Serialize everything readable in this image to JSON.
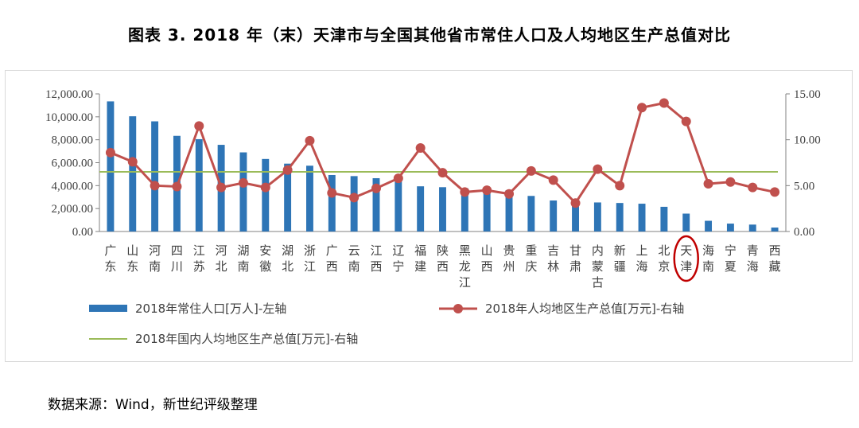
{
  "title": "图表 3. 2018 年（末）天津市与全国其他省市常住人口及人均地区生产总值对比",
  "source": "数据来源：Wind，新世纪评级整理",
  "chart_data": {
    "type": "bar",
    "categories": [
      "广东",
      "山东",
      "河南",
      "四川",
      "江苏",
      "河北",
      "湖南",
      "安徽",
      "湖北",
      "浙江",
      "广西",
      "云南",
      "江西",
      "辽宁",
      "福建",
      "陕西",
      "黑龙江",
      "山西",
      "贵州",
      "重庆",
      "吉林",
      "甘肃",
      "内蒙古",
      "新疆",
      "上海",
      "北京",
      "天津",
      "海南",
      "宁夏",
      "青海",
      "西藏"
    ],
    "highlight_category": "天津",
    "left_axis": {
      "ylim": [
        0,
        12000
      ],
      "ticks": [
        "0.00",
        "2,000.00",
        "4,000.00",
        "6,000.00",
        "8,000.00",
        "10,000.00",
        "12,000.00"
      ]
    },
    "right_axis": {
      "ylim": [
        0,
        15
      ],
      "ticks": [
        "0.00",
        "5.00",
        "10.00",
        "15.00"
      ]
    },
    "series": [
      {
        "name": "2018年常住人口[万人]-左轴",
        "kind": "bar",
        "axis": "left",
        "color": "#2e75b6",
        "values": [
          11346,
          10047,
          9605,
          8341,
          8051,
          7556,
          6899,
          6324,
          5917,
          5737,
          4926,
          4830,
          4648,
          4359,
          3941,
          3864,
          3773,
          3718,
          3600,
          3102,
          2704,
          2637,
          2534,
          2487,
          2424,
          2154,
          1560,
          934,
          688,
          603,
          344
        ]
      },
      {
        "name": "2018年人均地区生产总值[万元]-右轴",
        "kind": "line-marker",
        "axis": "right",
        "color": "#c0504d",
        "values": [
          8.6,
          7.6,
          5.0,
          4.9,
          11.5,
          4.8,
          5.3,
          4.8,
          6.7,
          9.9,
          4.2,
          3.7,
          4.7,
          5.8,
          9.1,
          6.4,
          4.3,
          4.5,
          4.1,
          6.6,
          5.6,
          3.1,
          6.8,
          5.0,
          13.5,
          14.0,
          12.0,
          5.2,
          5.4,
          4.8,
          4.3
        ]
      },
      {
        "name": "2018年国内人均地区生产总值[万元]-右轴",
        "kind": "hline",
        "axis": "right",
        "color": "#9bbb59",
        "value": 6.5
      }
    ]
  }
}
